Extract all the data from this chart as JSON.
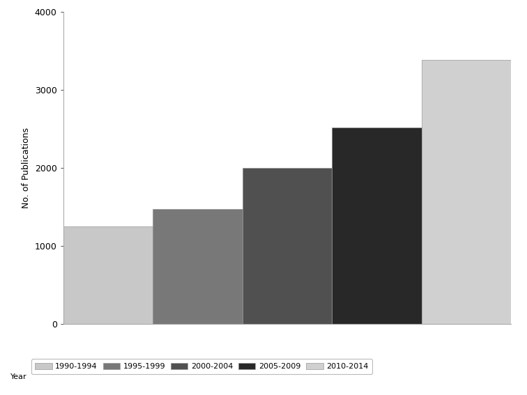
{
  "categories": [
    "1990-1994",
    "1995-1999",
    "2000-2004",
    "2005-2009",
    "2010-2014"
  ],
  "values": [
    1250,
    1470,
    2000,
    2520,
    3380
  ],
  "bar_colors": [
    "#c8c8c8",
    "#787878",
    "#505050",
    "#282828",
    "#d0d0d0"
  ],
  "ylabel": "No. of Publications",
  "ylim": [
    0,
    4000
  ],
  "yticks": [
    0,
    1000,
    2000,
    3000,
    4000
  ],
  "legend_label": "Year",
  "background_color": "#ffffff",
  "edge_color": "#999999",
  "bar_width": 1.0
}
